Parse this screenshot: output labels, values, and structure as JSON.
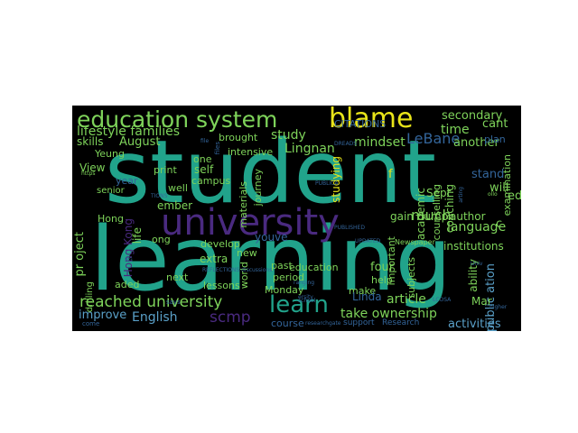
{
  "wordcloud": {
    "background": "#000000",
    "palette": {
      "teal": "#21a38b",
      "lightgreen": "#7ed35a",
      "yellow": "#e8e419",
      "purple": "#4a2a80",
      "darkpurple": "#3a1060",
      "blue": "#33659a",
      "lightblue": "#5aa0c8",
      "green": "#3cb56a"
    },
    "words": [
      {
        "text": "student",
        "color": "#21a38b"
      },
      {
        "text": "learning",
        "color": "#21a38b"
      },
      {
        "text": "university",
        "color": "#4a2a80"
      },
      {
        "text": "education system",
        "color": "#7ed35a"
      },
      {
        "text": "blame",
        "color": "#e8e419"
      },
      {
        "text": "learn",
        "color": "#21a38b"
      },
      {
        "text": "reached university",
        "color": "#7ed35a"
      },
      {
        "text": "lifestyle families",
        "color": "#7ed35a"
      },
      {
        "text": "English",
        "color": "#5aa0c8"
      },
      {
        "text": "scmp",
        "color": "#4a2a80"
      },
      {
        "text": "LeBane",
        "color": "#33659a"
      },
      {
        "text": "language",
        "color": "#7ed35a"
      },
      {
        "text": "take ownership",
        "color": "#7ed35a"
      },
      {
        "text": "article",
        "color": "#7ed35a"
      },
      {
        "text": "activities",
        "color": "#5aa0c8"
      },
      {
        "text": "secondary",
        "color": "#7ed35a"
      },
      {
        "text": "time",
        "color": "#7ed35a"
      },
      {
        "text": "another",
        "color": "#7ed35a"
      },
      {
        "text": "much",
        "color": "#7ed35a"
      },
      {
        "text": "mindset",
        "color": "#7ed35a"
      },
      {
        "text": "Lingnan",
        "color": "#7ed35a"
      },
      {
        "text": "study",
        "color": "#7ed35a"
      },
      {
        "text": "August",
        "color": "#7ed35a"
      },
      {
        "text": "skills",
        "color": "#7ed35a"
      },
      {
        "text": "improve",
        "color": "#5aa0c8"
      },
      {
        "text": "course",
        "color": "#33659a"
      },
      {
        "text": "education",
        "color": "#7ed35a"
      },
      {
        "text": "four",
        "color": "#7ed35a"
      },
      {
        "text": "past",
        "color": "#7ed35a"
      },
      {
        "text": "period",
        "color": "#7ed35a"
      },
      {
        "text": "Monday",
        "color": "#7ed35a"
      },
      {
        "text": "intensive",
        "color": "#7ed35a"
      },
      {
        "text": "brought",
        "color": "#7ed35a"
      },
      {
        "text": "Yeung",
        "color": "#7ed35a"
      },
      {
        "text": "View",
        "color": "#7ed35a"
      },
      {
        "text": "print",
        "color": "#7ed35a"
      },
      {
        "text": "well",
        "color": "#7ed35a"
      },
      {
        "text": "campus",
        "color": "#7ed35a"
      },
      {
        "text": "self",
        "color": "#7ed35a"
      },
      {
        "text": "one",
        "color": "#7ed35a"
      },
      {
        "text": "senior",
        "color": "#7ed35a"
      },
      {
        "text": "year",
        "color": "#33659a"
      },
      {
        "text": "Hong Kong",
        "color": "#4a2a80"
      },
      {
        "text": "life",
        "color": "#7ed35a"
      },
      {
        "text": "ember",
        "color": "#7ed35a"
      },
      {
        "text": "ong",
        "color": "#7ed35a"
      },
      {
        "text": "extra",
        "color": "#7ed35a"
      },
      {
        "text": "aded",
        "color": "#7ed35a"
      },
      {
        "text": "next",
        "color": "#7ed35a"
      },
      {
        "text": "pr oject",
        "color": "#7ed35a"
      },
      {
        "text": "Hong",
        "color": "#7ed35a"
      },
      {
        "text": "drilling",
        "color": "#7ed35a"
      },
      {
        "text": "author",
        "color": "#7ed35a"
      },
      {
        "text": "gain dump",
        "color": "#7ed35a"
      },
      {
        "text": "Sept",
        "color": "#7ed35a"
      },
      {
        "text": "academic",
        "color": "#7ed35a"
      },
      {
        "text": "coaching",
        "color": "#7ed35a"
      },
      {
        "text": "counselling",
        "color": "#7ed35a"
      },
      {
        "text": "studying",
        "color": "#e8e419"
      },
      {
        "text": "institutions",
        "color": "#7ed35a"
      },
      {
        "text": "public ation",
        "color": "#5aa0c8"
      },
      {
        "text": "ability",
        "color": "#7ed35a"
      },
      {
        "text": "examination",
        "color": "#7ed35a"
      },
      {
        "text": "will",
        "color": "#7ed35a"
      },
      {
        "text": "cant",
        "color": "#7ed35a"
      },
      {
        "text": "Mar",
        "color": "#7ed35a"
      },
      {
        "text": "help",
        "color": "#7ed35a"
      },
      {
        "text": "make",
        "color": "#7ed35a"
      },
      {
        "text": "subjects",
        "color": "#7ed35a"
      },
      {
        "text": "important",
        "color": "#7ed35a"
      },
      {
        "text": "develop",
        "color": "#7ed35a"
      },
      {
        "text": "lessons",
        "color": "#7ed35a"
      },
      {
        "text": "materials",
        "color": "#7ed35a"
      },
      {
        "text": "journey",
        "color": "#7ed35a"
      },
      {
        "text": "world",
        "color": "#7ed35a"
      },
      {
        "text": "new",
        "color": "#7ed35a"
      },
      {
        "text": "youve",
        "color": "#33659a"
      },
      {
        "text": "Linda",
        "color": "#33659a"
      },
      {
        "text": "ed",
        "color": "#7ed35a"
      },
      {
        "text": "plan",
        "color": "#33659a"
      },
      {
        "text": "c",
        "color": "#7ed35a"
      },
      {
        "text": "f",
        "color": "#e8e419"
      },
      {
        "text": "CITATIONS",
        "color": "#33659a"
      },
      {
        "text": "REFLECTIONS discussions",
        "color": "#33659a"
      },
      {
        "text": "PUBLISHED",
        "color": "#33659a"
      },
      {
        "text": "UPDATED",
        "color": "#33659a"
      },
      {
        "text": "Newspaper",
        "color": "#7ed35a"
      },
      {
        "text": "DREADS",
        "color": "#33659a"
      },
      {
        "text": "support",
        "color": "#33659a"
      },
      {
        "text": "Research",
        "color": "#33659a"
      },
      {
        "text": "says",
        "color": "#33659a"
      },
      {
        "text": "school",
        "color": "#33659a"
      },
      {
        "text": "researchgate",
        "color": "#33659a"
      },
      {
        "text": "come",
        "color": "#33659a"
      },
      {
        "text": "https",
        "color": "#7ed35a"
      },
      {
        "text": "Univ",
        "color": "#33659a"
      },
      {
        "text": "LCOSA",
        "color": "#33659a"
      },
      {
        "text": "higher",
        "color": "#33659a"
      },
      {
        "text": "ollo",
        "color": "#7ed35a"
      },
      {
        "text": "arting",
        "color": "#33659a"
      },
      {
        "text": "ersity",
        "color": "#33659a"
      },
      {
        "text": "TIONS",
        "color": "#33659a"
      },
      {
        "text": "PUBLICA",
        "color": "#33659a"
      },
      {
        "text": "RG",
        "color": "#33659a"
      },
      {
        "text": "ranging",
        "color": "#33659a"
      },
      {
        "text": "stand",
        "color": "#33659a"
      },
      {
        "text": "files",
        "color": "#33659a"
      },
      {
        "text": "file",
        "color": "#33659a"
      }
    ]
  }
}
